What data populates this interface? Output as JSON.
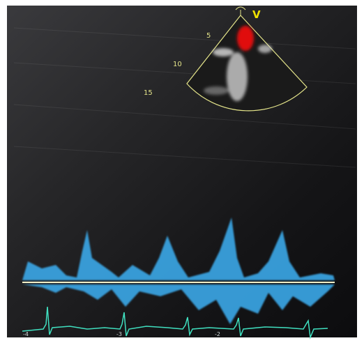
{
  "sector": {
    "marker": "V",
    "depth_labels": [
      "5",
      "10",
      "15"
    ]
  },
  "doppler": {
    "time_labels": [
      "-4",
      "-3",
      "-2"
    ]
  }
}
